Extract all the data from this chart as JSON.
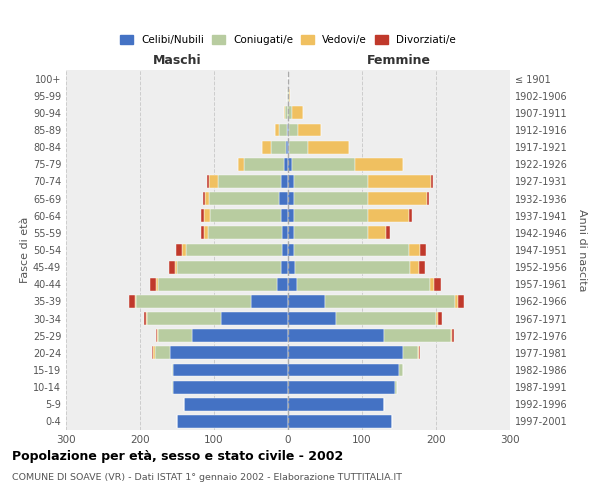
{
  "age_groups": [
    "100+",
    "95-99",
    "90-94",
    "85-89",
    "80-84",
    "75-79",
    "70-74",
    "65-69",
    "60-64",
    "55-59",
    "50-54",
    "45-49",
    "40-44",
    "35-39",
    "30-34",
    "25-29",
    "20-24",
    "15-19",
    "10-14",
    "5-9",
    "0-4"
  ],
  "birth_years": [
    "≤ 1901",
    "1902-1906",
    "1907-1911",
    "1912-1916",
    "1917-1921",
    "1922-1926",
    "1927-1931",
    "1932-1936",
    "1937-1941",
    "1942-1946",
    "1947-1951",
    "1952-1956",
    "1957-1961",
    "1962-1966",
    "1967-1971",
    "1972-1976",
    "1977-1981",
    "1982-1986",
    "1987-1991",
    "1992-1996",
    "1997-2001"
  ],
  "males": {
    "celibi": [
      0,
      0,
      0,
      2,
      3,
      5,
      10,
      12,
      10,
      8,
      8,
      10,
      15,
      50,
      90,
      130,
      160,
      155,
      155,
      140,
      150
    ],
    "coniugati": [
      0,
      1,
      4,
      10,
      20,
      55,
      85,
      95,
      95,
      100,
      130,
      140,
      160,
      155,
      100,
      45,
      20,
      2,
      2,
      0,
      0
    ],
    "vedovi": [
      0,
      0,
      2,
      5,
      12,
      8,
      12,
      5,
      8,
      5,
      5,
      3,
      3,
      2,
      2,
      2,
      2,
      0,
      0,
      0,
      0
    ],
    "divorziati": [
      0,
      0,
      0,
      0,
      0,
      0,
      3,
      3,
      5,
      5,
      8,
      8,
      8,
      8,
      3,
      2,
      2,
      0,
      0,
      0,
      0
    ]
  },
  "females": {
    "nubili": [
      0,
      0,
      0,
      2,
      2,
      5,
      8,
      8,
      8,
      8,
      8,
      10,
      12,
      50,
      65,
      130,
      155,
      150,
      145,
      130,
      140
    ],
    "coniugate": [
      0,
      1,
      5,
      12,
      25,
      85,
      100,
      100,
      100,
      100,
      155,
      155,
      180,
      175,
      135,
      90,
      20,
      5,
      2,
      0,
      0
    ],
    "vedove": [
      0,
      2,
      15,
      30,
      55,
      65,
      85,
      80,
      55,
      25,
      15,
      12,
      5,
      5,
      3,
      2,
      2,
      0,
      0,
      0,
      0
    ],
    "divorziate": [
      0,
      0,
      0,
      0,
      0,
      0,
      3,
      3,
      5,
      5,
      8,
      8,
      10,
      8,
      5,
      2,
      2,
      0,
      0,
      0,
      0
    ]
  },
  "colors": {
    "celibi": "#4472c4",
    "coniugati": "#b8cca0",
    "vedovi": "#f0c060",
    "divorziati": "#c0392b"
  },
  "xlim": 300,
  "title": "Popolazione per età, sesso e stato civile - 2002",
  "subtitle": "COMUNE DI SOAVE (VR) - Dati ISTAT 1° gennaio 2002 - Elaborazione TUTTITALIA.IT",
  "xlabel_left": "Maschi",
  "xlabel_right": "Femmine",
  "ylabel_left": "Fasce di età",
  "ylabel_right": "Anni di nascita",
  "legend_labels": [
    "Celibi/Nubili",
    "Coniugati/e",
    "Vedovi/e",
    "Divorziati/e"
  ],
  "bg_color": "#ffffff",
  "plot_bg_color": "#eeeeee",
  "grid_color": "#cccccc",
  "label_color": "#555555",
  "title_color": "#000000"
}
